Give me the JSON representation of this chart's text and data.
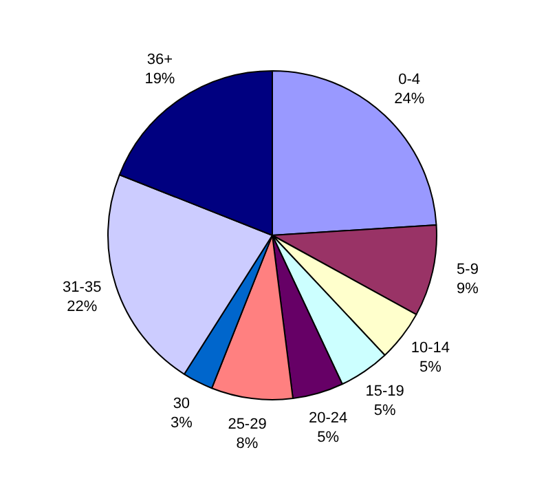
{
  "chart_data": {
    "type": "pie",
    "categories": [
      "0-4",
      "5-9",
      "10-14",
      "15-19",
      "20-24",
      "25-29",
      "30",
      "31-35",
      "36+"
    ],
    "values": [
      24,
      9,
      5,
      5,
      5,
      8,
      3,
      22,
      19
    ],
    "value_labels": [
      "24%",
      "9%",
      "5%",
      "5%",
      "5%",
      "8%",
      "3%",
      "22%",
      "19%"
    ],
    "colors": [
      "#9999ff",
      "#993366",
      "#ffffcc",
      "#ccffff",
      "#660066",
      "#ff8080",
      "#0066cc",
      "#ccccff",
      "#000080"
    ],
    "legend": false
  }
}
